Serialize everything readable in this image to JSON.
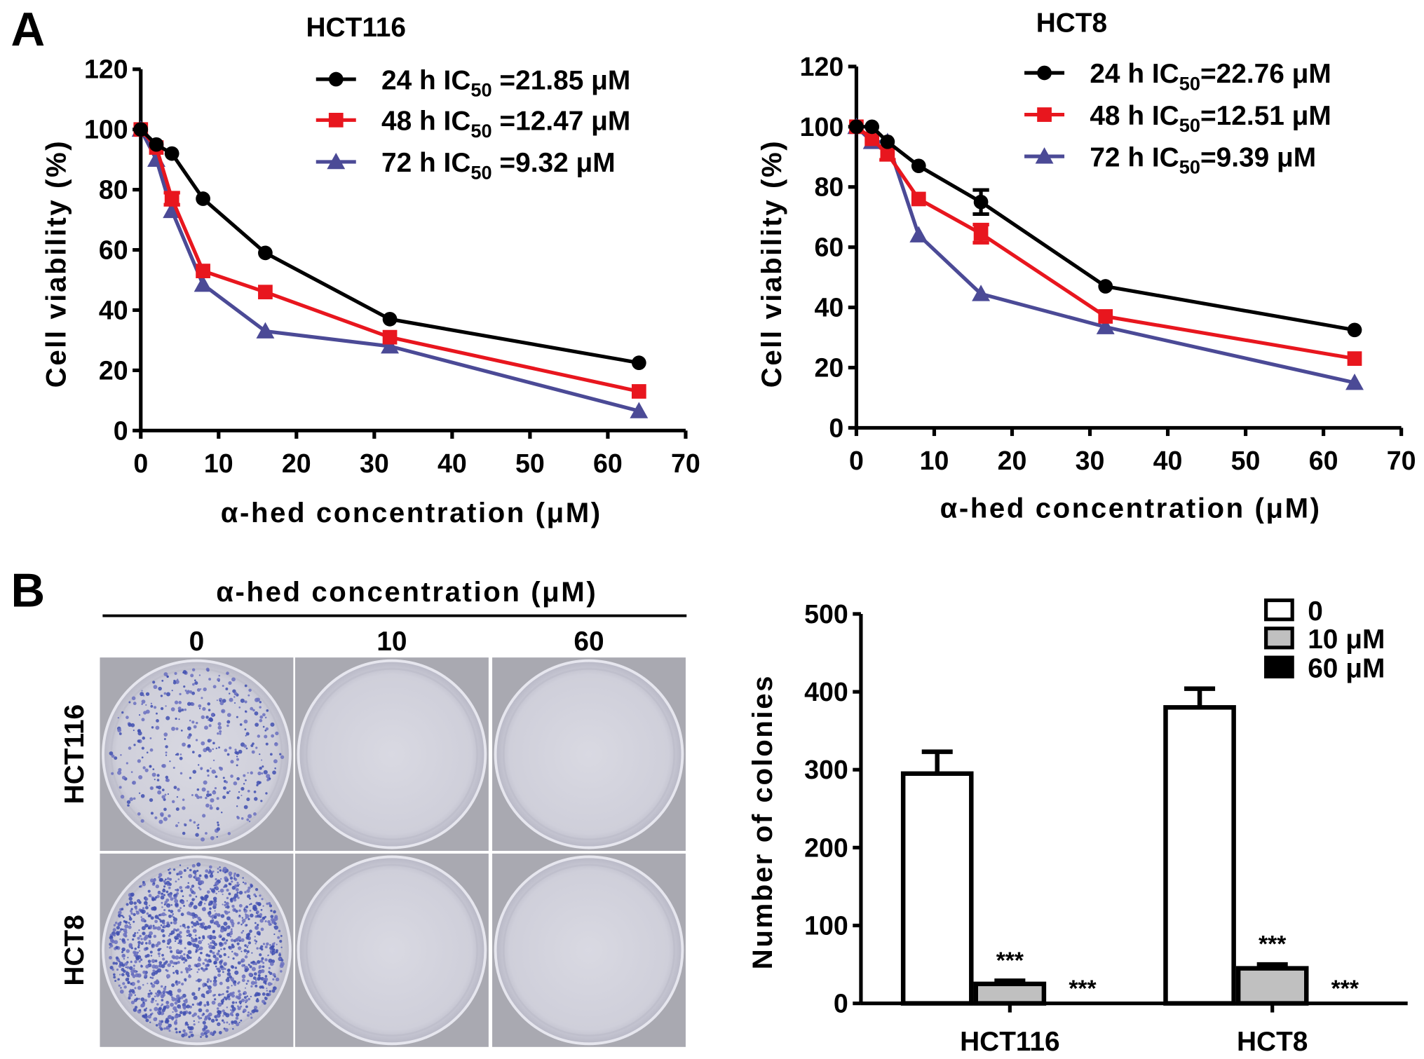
{
  "panel_labels": {
    "a": "A",
    "b": "B"
  },
  "chart_data": [
    {
      "type": "line",
      "title": "HCT116",
      "xlabel": "α-hed concentration (μM)",
      "ylabel": "Cell viability (%)",
      "xlim": [
        0,
        70
      ],
      "ylim": [
        0,
        120
      ],
      "xticks": [
        0,
        10,
        20,
        30,
        40,
        50,
        60,
        70
      ],
      "yticks": [
        0,
        20,
        40,
        60,
        80,
        100,
        120
      ],
      "x": [
        0,
        2,
        4,
        8,
        16,
        32,
        64
      ],
      "legend_position": "top-right",
      "series": [
        {
          "name": "24 h",
          "legend": {
            "prefix": "24 h IC",
            "sub": "50",
            "suffix": " =21.85 μM"
          },
          "color": "#000000",
          "marker": "circle",
          "values": [
            100,
            95,
            92,
            77,
            59,
            37,
            22.5
          ],
          "errors": [
            0,
            1,
            1,
            1,
            1,
            1,
            1
          ]
        },
        {
          "name": "48 h",
          "legend": {
            "prefix": "48 h IC",
            "sub": "50",
            "suffix": " =12.47 μM"
          },
          "color": "#e8161e",
          "marker": "square",
          "values": [
            100,
            94,
            77,
            53,
            46,
            31,
            13
          ],
          "errors": [
            0,
            1,
            2,
            1,
            1,
            1,
            1
          ]
        },
        {
          "name": "72 h",
          "legend": {
            "prefix": "72 h IC",
            "sub": "50",
            "suffix": " =9.32 μM"
          },
          "color": "#4b4a96",
          "marker": "triangle",
          "values": [
            100,
            90,
            73,
            48.5,
            33,
            28,
            6.5
          ],
          "errors": [
            0,
            1,
            1,
            1,
            1,
            1,
            1
          ]
        }
      ]
    },
    {
      "type": "line",
      "title": "HCT8",
      "xlabel": "α-hed concentration (μM)",
      "ylabel": "Cell viability (%)",
      "xlim": [
        0,
        70
      ],
      "ylim": [
        0,
        120
      ],
      "xticks": [
        0,
        10,
        20,
        30,
        40,
        50,
        60,
        70
      ],
      "yticks": [
        0,
        20,
        40,
        60,
        80,
        100,
        120
      ],
      "x": [
        0,
        2,
        4,
        8,
        16,
        32,
        64
      ],
      "legend_position": "top-right",
      "series": [
        {
          "name": "24 h",
          "legend": {
            "prefix": "24 h IC",
            "sub": "50",
            "suffix": "=22.76 μM"
          },
          "color": "#000000",
          "marker": "circle",
          "values": [
            100,
            100,
            95,
            87,
            75,
            47,
            32.5
          ],
          "errors": [
            0,
            1,
            1,
            1,
            4,
            1,
            1
          ]
        },
        {
          "name": "48 h",
          "legend": {
            "prefix": "48 h IC",
            "sub": "50",
            "suffix": "=12.51 μM"
          },
          "color": "#e8161e",
          "marker": "square",
          "values": [
            100,
            96,
            91,
            76,
            64.5,
            37,
            23
          ],
          "errors": [
            0,
            1,
            2,
            1,
            3,
            1,
            1
          ]
        },
        {
          "name": "72 h",
          "legend": {
            "prefix": "72 h IC",
            "sub": "50",
            "suffix": "=9.39 μM"
          },
          "color": "#4b4a96",
          "marker": "triangle",
          "values": [
            100,
            95,
            95,
            64,
            44.5,
            33.5,
            15
          ],
          "errors": [
            0,
            1,
            1,
            1,
            1,
            1,
            1
          ]
        }
      ]
    },
    {
      "type": "bar",
      "title": "",
      "xlabel": "",
      "ylabel": "Number of colonies",
      "ylim": [
        0,
        500
      ],
      "yticks": [
        0,
        100,
        200,
        300,
        400,
        500
      ],
      "categories": [
        "HCT116",
        "HCT8"
      ],
      "legend_position": "top-right",
      "series": [
        {
          "name": "0",
          "fill": "#ffffff",
          "values": [
            295,
            380
          ],
          "errors": [
            28,
            24
          ],
          "annotations": [
            "",
            ""
          ]
        },
        {
          "name": "10 μM",
          "fill": "#c0c0c0",
          "values": [
            25,
            45
          ],
          "errors": [
            4,
            5
          ],
          "annotations": [
            "***",
            "***"
          ]
        },
        {
          "name": "60 μM",
          "fill": "#000000",
          "values": [
            0,
            0
          ],
          "errors": [
            0,
            0
          ],
          "annotations": [
            "***",
            "***"
          ]
        }
      ]
    }
  ],
  "colony_panel": {
    "header": "α-hed concentration (μM)",
    "columns": [
      "0",
      "10",
      "60"
    ],
    "rows": [
      "HCT116",
      "HCT8"
    ]
  }
}
